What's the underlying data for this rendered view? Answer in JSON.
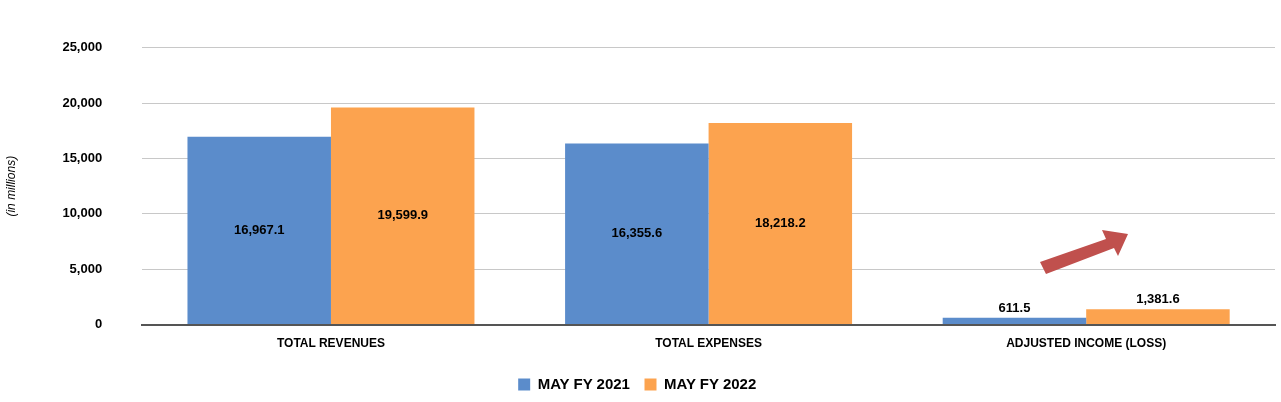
{
  "chart_data": {
    "type": "bar",
    "ylabel": "(in millions)",
    "categories": [
      "TOTAL REVENUES",
      "TOTAL EXPENSES",
      "ADJUSTED INCOME (LOSS)"
    ],
    "series": [
      {
        "name": "MAY FY 2021",
        "color": "#5b8ccb",
        "values": [
          16967.1,
          16355.6,
          611.5
        ],
        "value_labels": [
          "16,967.1",
          "16,355.6",
          "611.5"
        ]
      },
      {
        "name": "MAY FY 2022",
        "color": "#fca34f",
        "values": [
          19599.9,
          18218.2,
          1381.6
        ],
        "value_labels": [
          "19,599.9",
          "18,218.2",
          "1,381.6"
        ]
      }
    ],
    "ylim": [
      0,
      25000
    ],
    "yticks": [
      0,
      {
        "value": 5000,
        "label": "5,000"
      },
      {
        "value": 10000,
        "label": "10,000"
      },
      {
        "value": 15000,
        "label": "15,000"
      },
      {
        "value": 20000,
        "label": "20,000"
      },
      {
        "value": 25000,
        "label": "25,000"
      }
    ],
    "grid": "y",
    "legend": "bottom"
  }
}
